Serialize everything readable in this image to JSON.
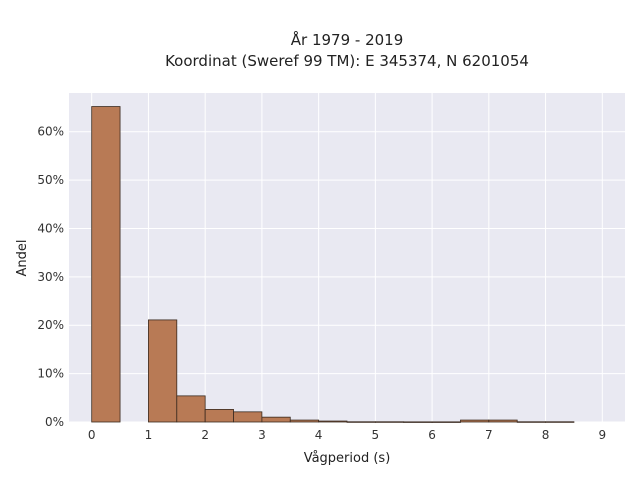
{
  "chart_data": {
    "type": "bar",
    "title_line1": "År 1979 - 2019",
    "title_line2": "Koordinat (Sweref 99 TM): E 345374, N 6201054",
    "xlabel": "Vågperiod (s)",
    "ylabel": "Andel",
    "bin_width": 0.5,
    "xlim": [
      -0.4,
      9.4
    ],
    "ylim": [
      0,
      0.68
    ],
    "x_ticks": [
      0,
      1,
      2,
      3,
      4,
      5,
      6,
      7,
      8,
      9
    ],
    "x_tick_labels": [
      "0",
      "1",
      "2",
      "3",
      "4",
      "5",
      "6",
      "7",
      "8",
      "9"
    ],
    "y_ticks": [
      0,
      0.1,
      0.2,
      0.3,
      0.4,
      0.5,
      0.6
    ],
    "y_tick_labels": [
      "0%",
      "10%",
      "20%",
      "30%",
      "40%",
      "50%",
      "60%"
    ],
    "grid": true,
    "bar_color": "#b87a55",
    "bar_edge_color": "#3a2a1f",
    "background_color": "#e9e9f2",
    "bin_starts": [
      0,
      0.5,
      1,
      1.5,
      2,
      2.5,
      3,
      3.5,
      4,
      4.5,
      5,
      5.5,
      6,
      6.5,
      7,
      7.5,
      8
    ],
    "values": [
      0.652,
      0,
      0.211,
      0.054,
      0.026,
      0.021,
      0.01,
      0.004,
      0.002,
      0.0005,
      0.0005,
      0.0003,
      0.0003,
      0.004,
      0.004,
      0.0005,
      0.0005
    ]
  }
}
